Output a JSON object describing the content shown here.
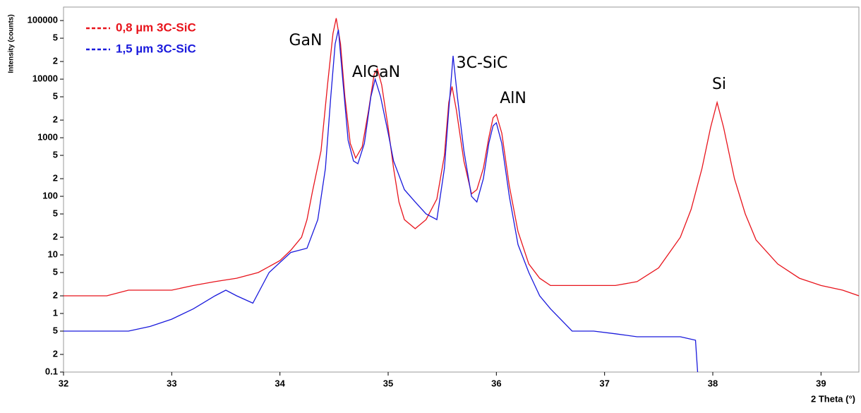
{
  "chart_data": {
    "type": "line",
    "xlabel": "2 Theta (°)",
    "ylabel": "Intensity (counts)",
    "log_y": true,
    "xlim": [
      32,
      39.35
    ],
    "xticks": [
      32,
      33,
      34,
      35,
      36,
      37,
      38,
      39
    ],
    "ylim": [
      0.1,
      170000
    ],
    "yticks": [
      0.1,
      {
        "value": 0.2,
        "label": "2"
      },
      {
        "value": 0.5,
        "label": "5"
      },
      1,
      2,
      5,
      10,
      {
        "value": 20,
        "label": "2"
      },
      {
        "value": 50,
        "label": "5"
      },
      100,
      {
        "value": 200,
        "label": "2"
      },
      {
        "value": 500,
        "label": "5"
      },
      1000,
      {
        "value": 2000,
        "label": "2"
      },
      {
        "value": 5000,
        "label": "5"
      },
      10000,
      {
        "value": 20000,
        "label": "2"
      },
      {
        "value": 50000,
        "label": "5"
      },
      100000
    ],
    "annotations": [
      "GaN",
      "AlGaN",
      "3C-SiC",
      "AlN",
      "Si"
    ],
    "series": [
      {
        "name": "0,8 µm 3C-SiC",
        "color": "#e8141c",
        "x": [
          32,
          32.2,
          32.4,
          32.6,
          32.8,
          33,
          33.2,
          33.4,
          33.6,
          33.8,
          34,
          34.1,
          34.2,
          34.25,
          34.3,
          34.38,
          34.44,
          34.49,
          34.52,
          34.56,
          34.6,
          34.65,
          34.7,
          34.76,
          34.82,
          34.87,
          34.9,
          34.94,
          35.0,
          35.05,
          35.1,
          35.15,
          35.25,
          35.35,
          35.45,
          35.52,
          35.56,
          35.59,
          35.63,
          35.7,
          35.77,
          35.82,
          35.88,
          35.93,
          35.97,
          36.0,
          36.05,
          36.12,
          36.2,
          36.3,
          36.4,
          36.5,
          36.7,
          36.9,
          37.1,
          37.3,
          37.5,
          37.7,
          37.8,
          37.9,
          37.98,
          38.04,
          38.1,
          38.2,
          38.3,
          38.4,
          38.6,
          38.8,
          39,
          39.2,
          39.35
        ],
        "values": [
          2,
          2,
          2,
          2.5,
          2.5,
          2.5,
          3,
          3.5,
          4,
          5,
          8,
          12,
          20,
          40,
          120,
          600,
          8000,
          60000,
          110000,
          40000,
          5000,
          800,
          450,
          700,
          3000,
          12000,
          15000,
          8000,
          1500,
          300,
          80,
          40,
          28,
          40,
          90,
          500,
          4000,
          7500,
          3000,
          400,
          110,
          130,
          300,
          1000,
          2200,
          2500,
          1200,
          150,
          25,
          7,
          4,
          3,
          3,
          3,
          3,
          3.5,
          6,
          20,
          60,
          300,
          1500,
          4000,
          1500,
          200,
          50,
          18,
          7,
          4,
          3,
          2.5,
          2
        ]
      },
      {
        "name": "1,5 µm 3C-SiC",
        "color": "#1a1adc",
        "x": [
          32,
          32.2,
          32.4,
          32.6,
          32.8,
          33,
          33.2,
          33.4,
          33.5,
          33.6,
          33.75,
          33.9,
          34.1,
          34.25,
          34.35,
          34.42,
          34.47,
          34.51,
          34.54,
          34.58,
          34.63,
          34.68,
          34.72,
          34.78,
          34.84,
          34.88,
          34.93,
          35,
          35.05,
          35.15,
          35.25,
          35.35,
          35.45,
          35.52,
          35.56,
          35.6,
          35.64,
          35.7,
          35.77,
          35.82,
          35.88,
          35.93,
          35.97,
          36.0,
          36.05,
          36.12,
          36.2,
          36.3,
          36.4,
          36.5,
          36.7,
          36.9,
          37.1,
          37.3,
          37.5,
          37.7,
          37.84,
          37.86
        ],
        "values": [
          0.5,
          0.5,
          0.5,
          0.5,
          0.6,
          0.8,
          1.2,
          2,
          2.5,
          2,
          1.5,
          5,
          11,
          13,
          40,
          300,
          5000,
          40000,
          70000,
          10000,
          900,
          400,
          360,
          800,
          5000,
          10000,
          5000,
          1200,
          400,
          130,
          80,
          50,
          40,
          300,
          3000,
          25000,
          5000,
          600,
          100,
          80,
          200,
          800,
          1600,
          1800,
          800,
          100,
          15,
          5,
          2,
          1.2,
          0.5,
          0.5,
          0.45,
          0.4,
          0.4,
          0.4,
          0.35,
          0.1
        ]
      }
    ]
  }
}
